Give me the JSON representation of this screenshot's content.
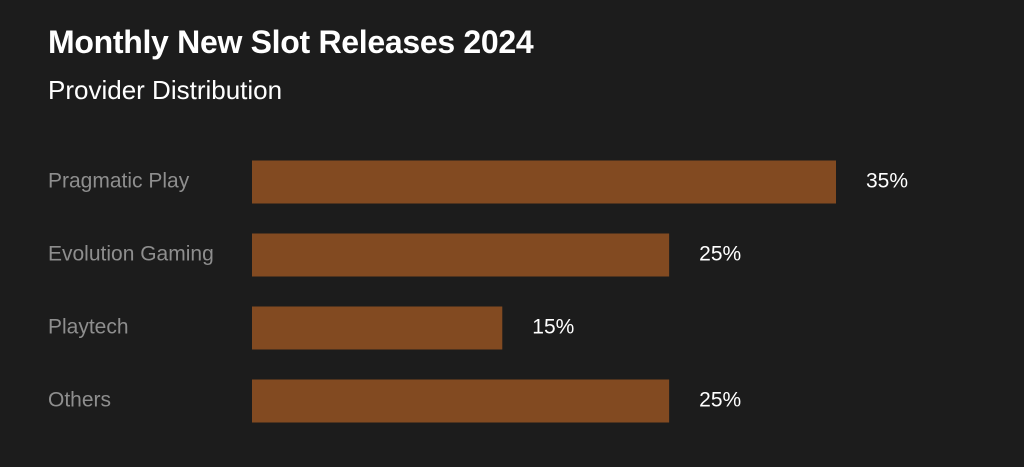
{
  "title": "Monthly New Slot Releases 2024",
  "subtitle": "Provider Distribution",
  "colors": {
    "background": "#1c1c1c",
    "bar": "#824a21",
    "category_text": "#8e8e8e",
    "value_text": "#ffffff"
  },
  "chart_data": {
    "type": "bar",
    "orientation": "horizontal",
    "title": "Monthly New Slot Releases 2024",
    "subtitle": "Provider Distribution",
    "categories": [
      "Pragmatic Play",
      "Evolution Gaming",
      "Playtech",
      "Others"
    ],
    "values": [
      35,
      25,
      15,
      25
    ],
    "value_labels": [
      "35%",
      "25%",
      "15%",
      "25%"
    ],
    "unit": "%",
    "xlim": [
      0,
      35
    ],
    "grid": false,
    "legend": "none"
  }
}
